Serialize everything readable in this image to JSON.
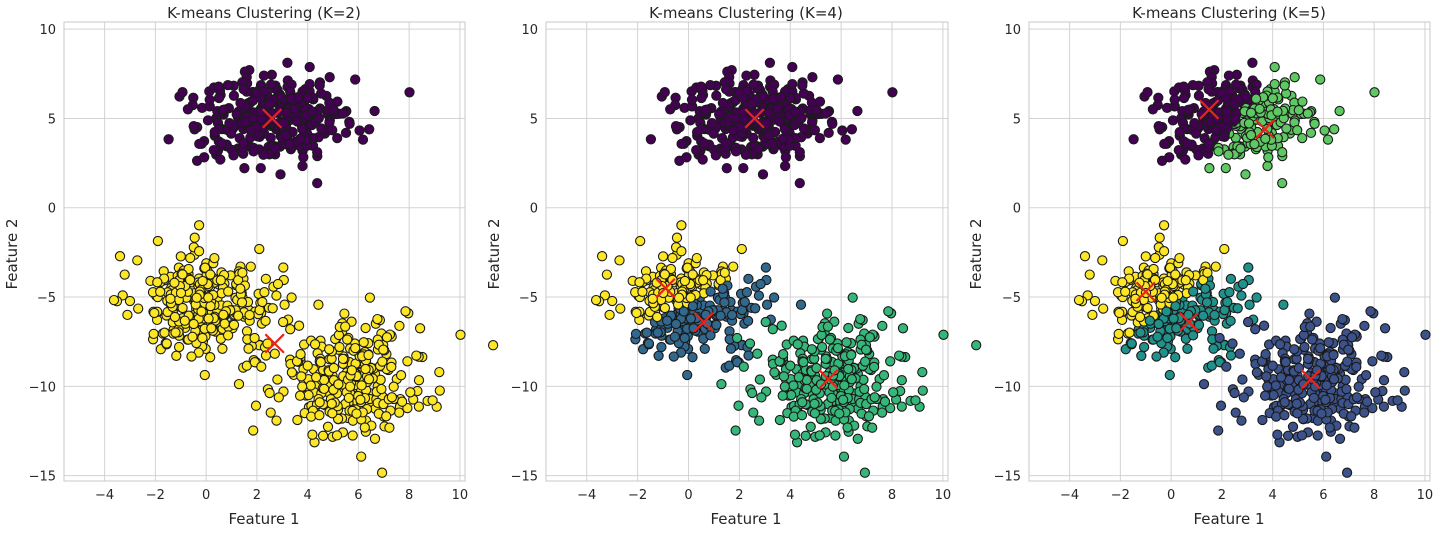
{
  "chart_data": [
    {
      "type": "scatter",
      "title": "K-means Clustering (K=2)",
      "xlabel": "Feature 1",
      "ylabel": "Feature 2",
      "xlim": [
        -5.6,
        10.2
      ],
      "ylim": [
        -15.3,
        10.4
      ],
      "xticks": [
        -4,
        -2,
        0,
        2,
        4,
        6,
        8,
        10
      ],
      "yticks": [
        -15,
        -10,
        -5,
        0,
        5,
        10
      ],
      "grid": true,
      "series": [
        {
          "cluster": 0,
          "color": "#440154",
          "blob": "top",
          "points": 300
        },
        {
          "cluster": 1,
          "color": "#fde725",
          "blob": "left+bottom-right",
          "points": 600
        }
      ],
      "centroids": [
        [
          2.6,
          5.0
        ],
        [
          2.7,
          -7.6
        ]
      ]
    },
    {
      "type": "scatter",
      "title": "K-means Clustering (K=4)",
      "xlabel": "Feature 1",
      "ylabel": "Feature 2",
      "xlim": [
        -5.6,
        10.2
      ],
      "ylim": [
        -15.3,
        10.4
      ],
      "xticks": [
        -4,
        -2,
        0,
        2,
        4,
        6,
        8,
        10
      ],
      "yticks": [
        -15,
        -10,
        -5,
        0,
        5,
        10
      ],
      "grid": true,
      "series": [
        {
          "cluster": 0,
          "color": "#440154",
          "blob": "top",
          "points": 300
        },
        {
          "cluster": 1,
          "color": "#31688e",
          "blob": "left-lower",
          "points": 150
        },
        {
          "cluster": 2,
          "color": "#35b779",
          "blob": "bottom-right",
          "points": 300
        },
        {
          "cluster": 3,
          "color": "#fde725",
          "blob": "left-upper",
          "points": 150
        }
      ],
      "centroids": [
        [
          2.6,
          5.0
        ],
        [
          0.6,
          -6.4
        ],
        [
          5.5,
          -9.6
        ],
        [
          -0.9,
          -4.5
        ]
      ]
    },
    {
      "type": "scatter",
      "title": "K-means Clustering (K=5)",
      "xlabel": "Feature 1",
      "ylabel": "Feature 2",
      "xlim": [
        -5.6,
        10.2
      ],
      "ylim": [
        -15.3,
        10.4
      ],
      "xticks": [
        -4,
        -2,
        0,
        2,
        4,
        6,
        8,
        10
      ],
      "yticks": [
        -15,
        -10,
        -5,
        0,
        5,
        10
      ],
      "grid": true,
      "series": [
        {
          "cluster": 0,
          "color": "#440154",
          "blob": "top-left",
          "points": 150
        },
        {
          "cluster": 1,
          "color": "#3b528b",
          "blob": "bottom-right",
          "points": 300
        },
        {
          "cluster": 2,
          "color": "#21918c",
          "blob": "left-lower",
          "points": 150
        },
        {
          "cluster": 3,
          "color": "#5ec962",
          "blob": "top-right",
          "points": 150
        },
        {
          "cluster": 4,
          "color": "#fde725",
          "blob": "left-upper",
          "points": 150
        }
      ],
      "centroids": [
        [
          1.5,
          5.5
        ],
        [
          3.7,
          4.4
        ],
        [
          -1.0,
          -4.7
        ],
        [
          0.7,
          -6.4
        ],
        [
          5.5,
          -9.6
        ]
      ]
    }
  ]
}
